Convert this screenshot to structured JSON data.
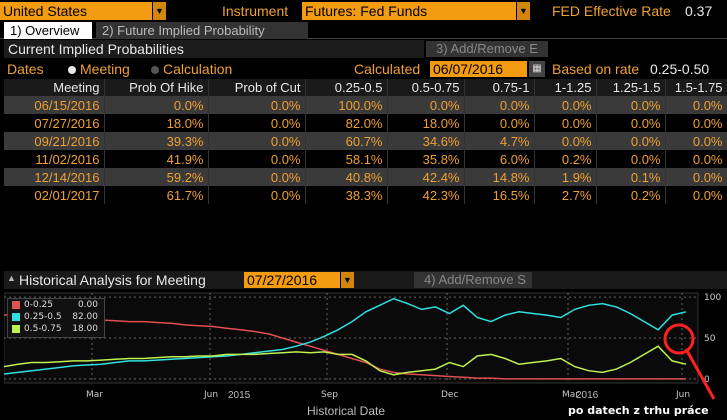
{
  "top": {
    "country": "United States",
    "instrument_label": "Instrument",
    "instrument_value": "Futures: Fed Funds",
    "fed_rate_label": "FED Effective Rate",
    "fed_rate_value": "0.37"
  },
  "tabs": [
    {
      "label": "1) Overview"
    },
    {
      "label": "2) Future Implied Probability"
    }
  ],
  "current": {
    "header": "Current Implied Probabilities",
    "add_remove": "3) Add/Remove E"
  },
  "options": {
    "dates_label": "Dates",
    "meeting_label": "Meeting",
    "calculation_label": "Calculation",
    "calculated_label": "Calculated",
    "calculated_value": "06/07/2016",
    "based_on_label": "Based on rate",
    "based_on_value": "0.25-0.50"
  },
  "table": {
    "columns": [
      "Meeting",
      "Prob Of Hike",
      "Prob of Cut",
      "0.25-0.5",
      "0.5-0.75",
      "0.75-1",
      "1-1.25",
      "1.25-1.5",
      "1.5-1.75"
    ],
    "rows": [
      [
        "06/15/2016",
        "0.0%",
        "0.0%",
        "100.0%",
        "0.0%",
        "0.0%",
        "0.0%",
        "0.0%",
        "0.0%"
      ],
      [
        "07/27/2016",
        "18.0%",
        "0.0%",
        "82.0%",
        "18.0%",
        "0.0%",
        "0.0%",
        "0.0%",
        "0.0%"
      ],
      [
        "09/21/2016",
        "39.3%",
        "0.0%",
        "60.7%",
        "34.6%",
        "4.7%",
        "0.0%",
        "0.0%",
        "0.0%"
      ],
      [
        "11/02/2016",
        "41.9%",
        "0.0%",
        "58.1%",
        "35.8%",
        "6.0%",
        "0.2%",
        "0.0%",
        "0.0%"
      ],
      [
        "12/14/2016",
        "59.2%",
        "0.0%",
        "40.8%",
        "42.4%",
        "14.8%",
        "1.9%",
        "0.1%",
        "0.0%"
      ],
      [
        "02/01/2017",
        "61.7%",
        "0.0%",
        "38.3%",
        "42.3%",
        "16.5%",
        "2.7%",
        "0.2%",
        "0.0%"
      ]
    ]
  },
  "history": {
    "label": "Historical Analysis for Meeting",
    "meeting_value": "07/27/2016",
    "add_remove": "4) Add/Remove S",
    "xaxis_title": "Historical Date",
    "annotation": "po datech z trhu práce"
  },
  "chart_data": {
    "type": "line",
    "x_ticks": [
      "Mar",
      "Jun",
      "Sep",
      "Dec",
      "Mar",
      "Jun"
    ],
    "year_labels": [
      "2015",
      "2016"
    ],
    "y_ticks": [
      0,
      50,
      100
    ],
    "ylim": [
      -5,
      105
    ],
    "xlabel": "Historical Date",
    "series": [
      {
        "name": "0-0.25",
        "color": "#e05050",
        "last": "0.00",
        "values": [
          78,
          80,
          78,
          76,
          75,
          74,
          73,
          72,
          71,
          70,
          70,
          69,
          68,
          66,
          65,
          64,
          62,
          60,
          58,
          55,
          50,
          45,
          40,
          35,
          30,
          25,
          20,
          12,
          8,
          6,
          5,
          4,
          3,
          2,
          1,
          1,
          0,
          0,
          0,
          0,
          0,
          0,
          0,
          0,
          0,
          0,
          0,
          0,
          0,
          0
        ]
      },
      {
        "name": "0.25-0.5",
        "color": "#30e0e0",
        "last": "82.00",
        "values": [
          6,
          8,
          10,
          12,
          14,
          16,
          17,
          18,
          20,
          22,
          22,
          23,
          24,
          25,
          26,
          27,
          28,
          30,
          32,
          34,
          36,
          40,
          45,
          52,
          60,
          70,
          82,
          90,
          98,
          92,
          85,
          88,
          80,
          90,
          75,
          70,
          78,
          82,
          80,
          78,
          75,
          85,
          90,
          92,
          88,
          80,
          70,
          60,
          78,
          82
        ]
      },
      {
        "name": "0.5-0.75",
        "color": "#c0f050",
        "last": "18.00",
        "values": [
          15,
          18,
          20,
          20,
          21,
          22,
          22,
          23,
          24,
          25,
          25,
          26,
          27,
          27,
          28,
          28,
          30,
          30,
          30,
          31,
          32,
          33,
          32,
          33,
          30,
          30,
          22,
          10,
          5,
          8,
          10,
          12,
          20,
          15,
          28,
          30,
          25,
          18,
          20,
          22,
          25,
          15,
          10,
          8,
          12,
          20,
          30,
          40,
          22,
          18
        ]
      }
    ]
  }
}
